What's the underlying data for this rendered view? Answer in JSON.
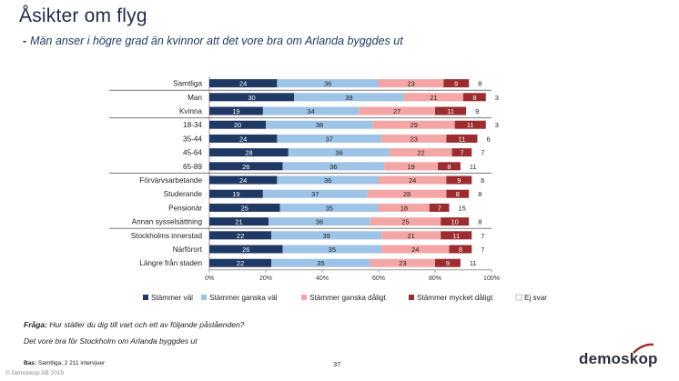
{
  "header": {
    "title": "Åsikter om flyg",
    "subtitle_dash": "-",
    "subtitle": "Män anser i högre grad än kvinnor att det vore bra om Arlanda byggdes ut"
  },
  "chart_data": {
    "type": "bar",
    "orientation": "horizontal",
    "stacked": true,
    "categories": [
      "Samtliga",
      "Man",
      "Kvinna",
      "18-34",
      "35-44",
      "45-64",
      "65-89",
      "Förvärvsarbetande",
      "Studerande",
      "Pensionär",
      "Annan sysselsättning",
      "Stockholms innerstad",
      "Närförort",
      "Längre från staden"
    ],
    "series": [
      {
        "name": "Stämmer väl",
        "color": "#1f3864",
        "values": [
          24,
          30,
          19,
          20,
          24,
          28,
          26,
          24,
          19,
          25,
          21,
          22,
          26,
          22
        ]
      },
      {
        "name": "Stämmer ganska väl",
        "color": "#9dc3e6",
        "values": [
          36,
          39,
          34,
          38,
          37,
          36,
          36,
          36,
          37,
          35,
          36,
          39,
          35,
          35
        ]
      },
      {
        "name": "Stämmer ganska dåligt",
        "color": "#f4a6a6",
        "values": [
          23,
          21,
          27,
          29,
          23,
          22,
          19,
          24,
          28,
          18,
          25,
          21,
          24,
          23
        ]
      },
      {
        "name": "Stämmer mycket dåligt",
        "color": "#9b2d30",
        "values": [
          9,
          8,
          11,
          11,
          11,
          7,
          8,
          9,
          8,
          7,
          10,
          11,
          8,
          9
        ]
      },
      {
        "name": "Ej svar",
        "color": "#ffffff",
        "values": [
          8,
          3,
          9,
          3,
          6,
          7,
          11,
          6,
          8,
          15,
          8,
          7,
          7,
          11
        ]
      }
    ],
    "xlim": [
      0,
      100
    ],
    "xticks": [
      "0%",
      "20%",
      "40%",
      "60%",
      "80%",
      "100%"
    ],
    "groups_after": [
      0,
      2,
      6,
      10
    ],
    "legend_position": "bottom"
  },
  "footer": {
    "question_label": "Fråga:",
    "question": "Hur ställer du dig till vart och ett av följande påståenden?",
    "statement": "Det vore bra för Stockholm om Arlanda byggdes ut",
    "base_label": "Bas:",
    "base": "Samtliga, 2 211 intervjuer",
    "page_number": "37",
    "copyright": "© Demoskop AB 2019",
    "logo": "demoskop"
  }
}
